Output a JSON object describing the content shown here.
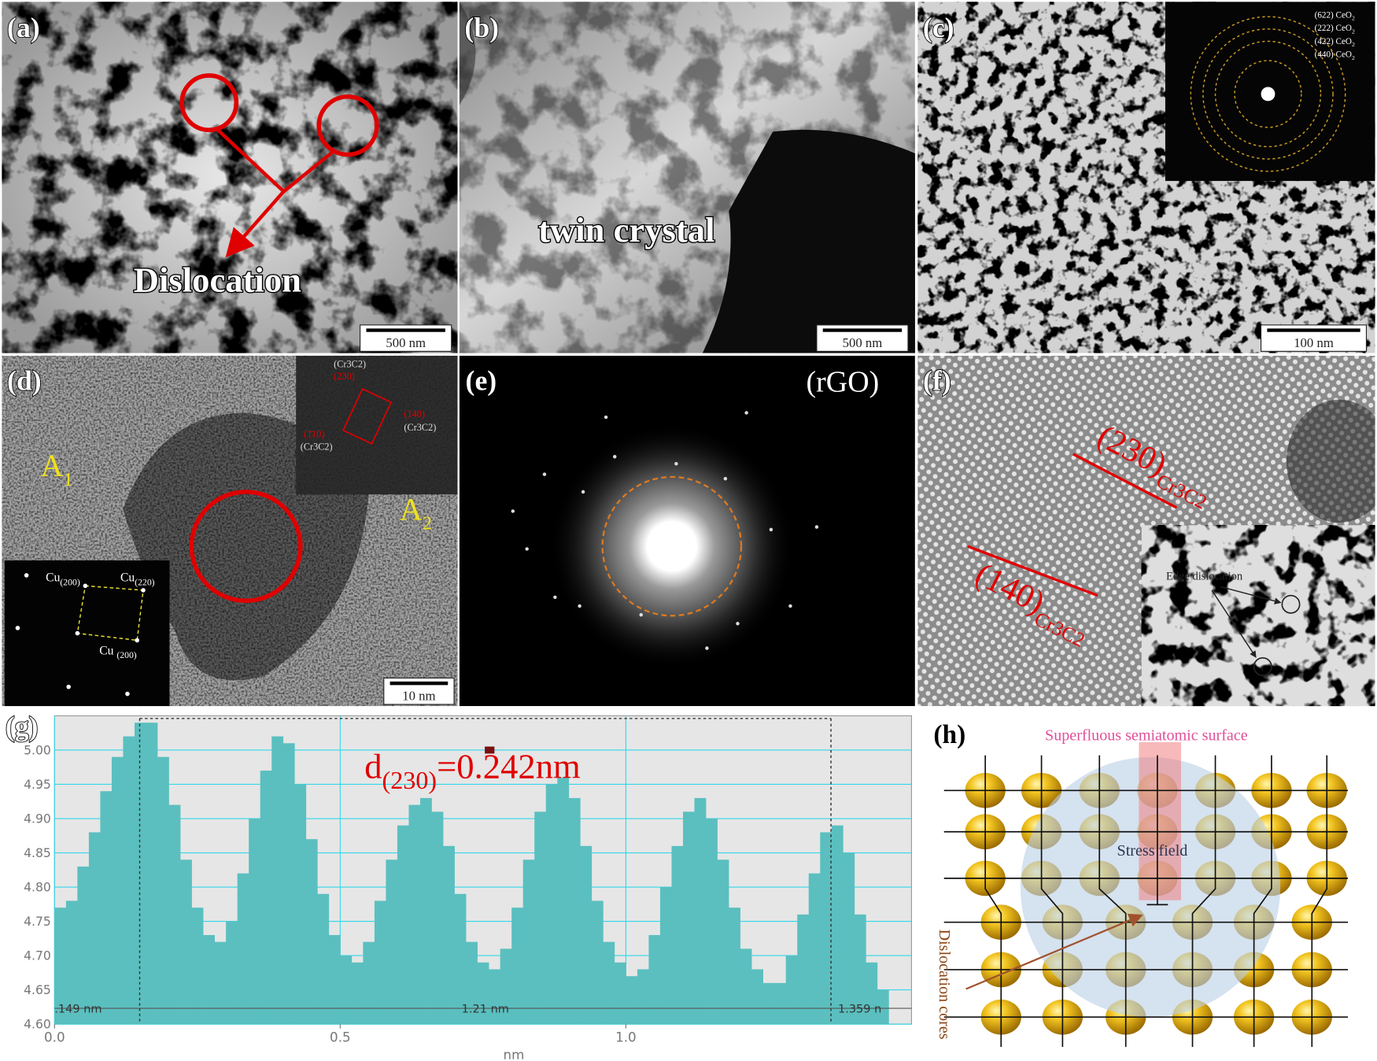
{
  "panels": {
    "a": {
      "label": "(a)",
      "annotation": "Dislocation",
      "scale_bar": "500 nm"
    },
    "b": {
      "label": "(b)",
      "annotation": "twin crystal",
      "scale_bar": "500 nm"
    },
    "c": {
      "label": "(c)",
      "scale_bar": "100 nm",
      "rings": [
        {
          "text": "(622) CeO",
          "sub": "2"
        },
        {
          "text": "(222) CeO",
          "sub": "2"
        },
        {
          "text": "(422) CeO",
          "sub": "2"
        },
        {
          "text": "(440) CeO",
          "sub": "2"
        }
      ]
    },
    "d": {
      "label": "(d)",
      "scale_bar": "10 nm",
      "regions": [
        {
          "text": "A",
          "sub": "1"
        },
        {
          "text": "A",
          "sub": "2"
        }
      ],
      "fft_labels": [
        "(Cr3C2)",
        "(230)",
        "(140)",
        "(Cr3C2)",
        "(1̄10)",
        "(Cr3C2)"
      ],
      "cu_labels": [
        {
          "text": "Cu",
          "sub": "(200)"
        },
        {
          "text": "Cu",
          "sub": "(220)"
        },
        {
          "text": "Cu ",
          "sub": "(200)"
        }
      ]
    },
    "e": {
      "label": "(e)",
      "annotation": "(rGO)"
    },
    "f": {
      "label": "(f)",
      "planes": [
        {
          "text": "(230)",
          "sub": "Cr3C2"
        },
        {
          "text": "(140)",
          "sub": "Cr3C2"
        }
      ],
      "inset_label": "Edge dislocation"
    },
    "h": {
      "label": "(h)",
      "surface": "Superfluous semiatomic surface",
      "stress": "Stress field",
      "cores": "Dislocation cores"
    }
  },
  "chart_data": {
    "type": "histogram",
    "label": "(g)",
    "x_label": "nm",
    "annotation": {
      "text": "d",
      "sub": "(230)",
      "rest": "=0.242nm"
    },
    "markers": [
      0.149,
      1.359
    ],
    "span_labels": [
      ".149 nm",
      "1.21 nm",
      "1.359 n"
    ],
    "color": "#5bbfbf",
    "grid": true,
    "xlim": [
      0,
      1.5
    ],
    "ylim": [
      4.6,
      5.05
    ],
    "xticks": [
      {
        "value": 0,
        "label": "0.0"
      },
      0.5,
      {
        "value": 1,
        "label": "1.0"
      }
    ],
    "yticks": [
      {
        "value": 4.6,
        "label": "4.60"
      },
      4.65,
      {
        "value": 4.7,
        "label": "4.70"
      },
      4.75,
      {
        "value": 4.8,
        "label": "4.80"
      },
      4.85,
      {
        "value": 4.9,
        "label": "4.90"
      },
      4.95,
      {
        "value": 5,
        "label": "5.00"
      }
    ],
    "bins": [
      0,
      0.02,
      0.04,
      0.06,
      0.08,
      0.1,
      0.12,
      0.14,
      0.16,
      0.18,
      0.2,
      0.22,
      0.24,
      0.26,
      0.28,
      0.3,
      0.32,
      0.34,
      0.36,
      0.38,
      0.4,
      0.42,
      0.44,
      0.46,
      0.48,
      0.5,
      0.52,
      0.54,
      0.56,
      0.58,
      0.6,
      0.62,
      0.64,
      0.66,
      0.68,
      0.7,
      0.72,
      0.74,
      0.76,
      0.78,
      0.8,
      0.82,
      0.84,
      0.86,
      0.88,
      0.9,
      0.92,
      0.94,
      0.96,
      0.98,
      1,
      1.02,
      1.04,
      1.06,
      1.08,
      1.1,
      1.12,
      1.14,
      1.16,
      1.18,
      1.2,
      1.22,
      1.24,
      1.26,
      1.28,
      1.3,
      1.32,
      1.34,
      1.36,
      1.38,
      1.4,
      1.42,
      1.44,
      1.46
    ],
    "values": [
      4.77,
      4.78,
      4.83,
      4.88,
      4.94,
      4.99,
      5.02,
      5.04,
      5.04,
      4.99,
      4.92,
      4.84,
      4.77,
      4.73,
      4.72,
      4.75,
      4.82,
      4.9,
      4.97,
      5.02,
      5.01,
      4.95,
      4.87,
      4.79,
      4.73,
      4.7,
      4.69,
      4.72,
      4.78,
      4.84,
      4.89,
      4.92,
      4.93,
      4.91,
      4.86,
      4.79,
      4.72,
      4.69,
      4.68,
      4.71,
      4.77,
      4.84,
      4.91,
      4.95,
      4.96,
      4.93,
      4.86,
      4.78,
      4.72,
      4.69,
      4.67,
      4.68,
      4.73,
      4.8,
      4.86,
      4.91,
      4.93,
      4.9,
      4.84,
      4.77,
      4.71,
      4.68,
      4.66,
      4.66,
      4.7,
      4.76,
      4.82,
      4.88,
      4.89,
      4.85,
      4.76,
      4.69,
      4.65
    ]
  }
}
